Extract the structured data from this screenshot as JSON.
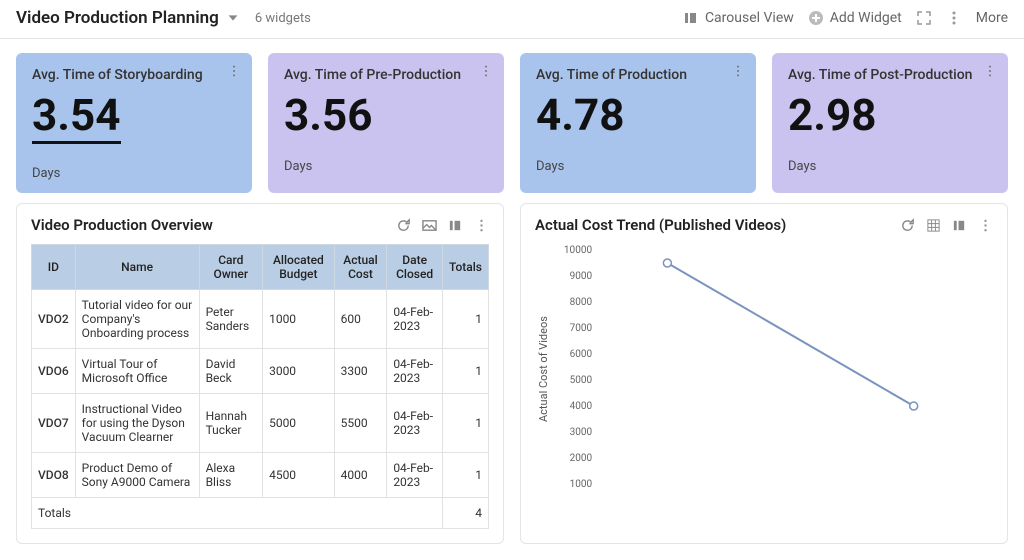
{
  "header": {
    "title": "Video Production Planning",
    "widget_count_label": "6 widgets",
    "carousel_label": "Carousel View",
    "add_widget_label": "Add Widget",
    "more_label": "More"
  },
  "kpis": [
    {
      "title": "Avg. Time of Storyboarding",
      "value": "3.54",
      "unit": "Days",
      "bg": "#a9c4ec",
      "underline": true
    },
    {
      "title": "Avg. Time of Pre-Production",
      "value": "3.56",
      "unit": "Days",
      "bg": "#cbc3ef",
      "underline": false
    },
    {
      "title": "Avg. Time of Production",
      "value": "4.78",
      "unit": "Days",
      "bg": "#a9c4ec",
      "underline": false
    },
    {
      "title": "Avg. Time of Post-Production",
      "value": "2.98",
      "unit": "Days",
      "bg": "#cbc3ef",
      "underline": false
    }
  ],
  "table": {
    "title": "Video Production Overview",
    "columns": [
      "ID",
      "Name",
      "Card Owner",
      "Allocated Budget",
      "Actual Cost",
      "Date Closed",
      "Totals"
    ],
    "rows": [
      {
        "id": "VDO2",
        "name": "Tutorial video for our Company's Onboarding process",
        "owner": "Peter Sanders",
        "alloc": "1000",
        "actual": "600",
        "closed": "04-Feb-2023",
        "totals": "1"
      },
      {
        "id": "VDO6",
        "name": "Virtual Tour of Microsoft Office",
        "owner": "David Beck",
        "alloc": "3000",
        "actual": "3300",
        "closed": "04-Feb-2023",
        "totals": "1"
      },
      {
        "id": "VDO7",
        "name": "Instructional Video for using the Dyson Vacuum Clearner",
        "owner": "Hannah Tucker",
        "alloc": "5000",
        "actual": "5500",
        "closed": "04-Feb-2023",
        "totals": "1"
      },
      {
        "id": "VDO8",
        "name": "Product Demo of Sony A9000 Camera",
        "owner": "Alexa Bliss",
        "alloc": "4500",
        "actual": "4000",
        "closed": "04-Feb-2023",
        "totals": "1"
      }
    ],
    "totals_label": "Totals",
    "totals_value": "4"
  },
  "chart": {
    "title": "Actual Cost Trend (Published Videos)",
    "y_label": "Actual Cost of Videos",
    "type": "line",
    "ylim": [
      1000,
      10000
    ],
    "ytick_step": 1000,
    "points": [
      {
        "x": 0,
        "y": 9500
      },
      {
        "x": 1,
        "y": 4000
      }
    ],
    "line_color": "#7b93bf",
    "marker_style": "circle",
    "marker_size": 4,
    "marker_fill": "#ffffff",
    "marker_stroke": "#7b93bf",
    "line_width": 2,
    "tick_font_size": 10,
    "tick_color": "#666666",
    "background_color": "#ffffff"
  }
}
